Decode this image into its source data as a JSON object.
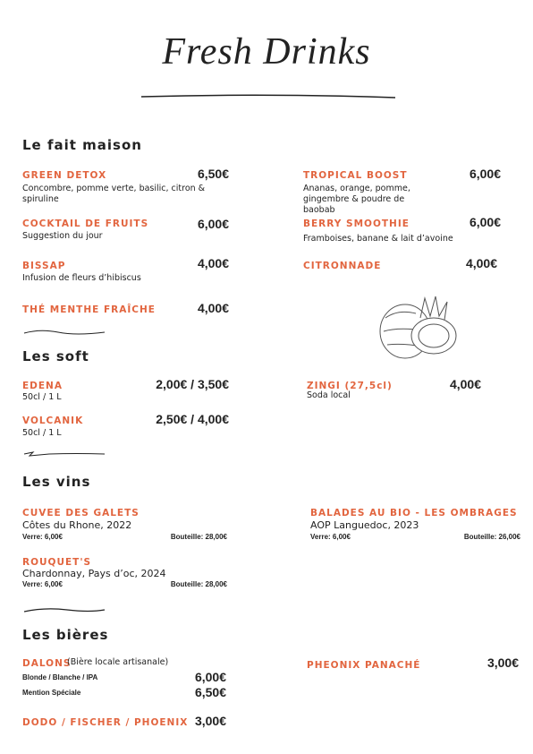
{
  "header": {
    "title": "Fresh Drinks"
  },
  "sections": [
    {
      "title": "Le fait maison",
      "items": [
        {
          "name": "GREEN DETOX",
          "price": "6,50€",
          "desc": "Concombre, pomme verte, basilic, citron & spiruline"
        },
        {
          "name": "TROPICAL BOOST",
          "price": "6,00€",
          "desc": "Ananas, orange, pomme, gingembre & poudre de baobab"
        },
        {
          "name": "COCKTAIL DE FRUITS",
          "price": "6,00€",
          "desc": "Suggestion du jour"
        },
        {
          "name": "BERRY SMOOTHIE",
          "price": "6,00€",
          "desc": "Framboises, banane & lait d’avoine"
        },
        {
          "name": "BISSAP",
          "price": "4,00€",
          "desc": "Infusion de fleurs d’hibiscus"
        },
        {
          "name": "CITRONNADE",
          "price": "4,00€"
        },
        {
          "name": "THÉ MENTHE FRAÎCHE",
          "price": "4,00€"
        }
      ]
    },
    {
      "title": "Les soft",
      "items": [
        {
          "name": "EDENA",
          "price": "2,00€ / 3,50€",
          "desc": "50cl / 1 L"
        },
        {
          "name": "ZINGI (27,5cl)",
          "price": "4,00€",
          "desc": "Soda local"
        },
        {
          "name": "VOLCANIK",
          "price": "2,50€ / 4,00€",
          "desc": "50cl / 1 L"
        }
      ]
    },
    {
      "title": "Les vins",
      "items": [
        {
          "name": "CUVEE DES GALETS",
          "desc": "Côtes du Rhone, 2022",
          "glass": "Verre: 6,00€",
          "bottle": "Bouteille: 28,00€"
        },
        {
          "name": "BALADES AU BIO - LES OMBRAGES",
          "desc": "AOP Languedoc, 2023",
          "glass": "Verre: 6,00€",
          "bottle": "Bouteille: 26,00€"
        },
        {
          "name": "ROUQUET'S",
          "desc": "Chardonnay, Pays d’oc, 2024",
          "glass": "Verre: 6,00€",
          "bottle": "Bouteille: 28,00€"
        }
      ]
    },
    {
      "title": "Les bières",
      "items": [
        {
          "name": "DALONS",
          "desc": "(Bière locale artisanale)",
          "options": [
            {
              "label": "Blonde / Blanche / IPA",
              "price": "6,00€"
            },
            {
              "label": "Mention Spéciale",
              "price": "6,50€"
            }
          ]
        },
        {
          "name": "PHEONIX PANACHÉ",
          "price": "3,00€"
        },
        {
          "name": "DODO / FISCHER / PHOENIX",
          "price": "3,00€"
        }
      ]
    }
  ]
}
